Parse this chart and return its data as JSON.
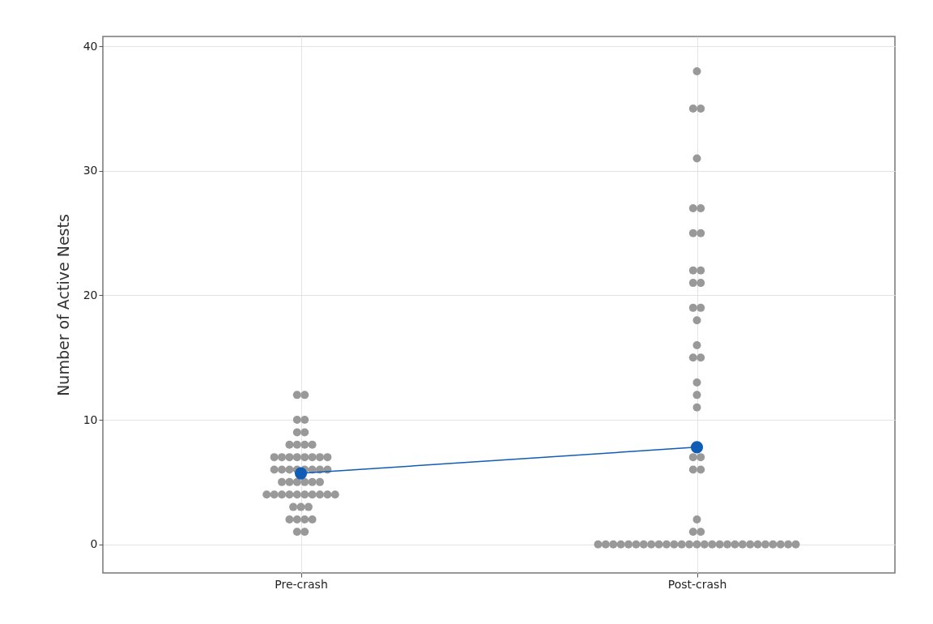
{
  "chart_data": {
    "type": "scatter",
    "ylabel": "Number of Active Nests",
    "categories": [
      "Pre-crash",
      "Post-crash"
    ],
    "ylim": [
      -2.3,
      40.8
    ],
    "yticks": [
      0,
      10,
      20,
      30,
      40
    ],
    "grid": true,
    "marker": "circle",
    "series": [
      {
        "color": "#999999",
        "x": [
          "Pre-crash",
          "Pre-crash",
          "Pre-crash",
          "Pre-crash",
          "Pre-crash",
          "Pre-crash",
          "Pre-crash",
          "Pre-crash",
          "Pre-crash",
          "Pre-crash",
          "Pre-crash",
          "Pre-crash",
          "Pre-crash",
          "Pre-crash",
          "Pre-crash",
          "Pre-crash",
          "Pre-crash",
          "Pre-crash",
          "Pre-crash",
          "Pre-crash",
          "Pre-crash",
          "Pre-crash",
          "Pre-crash",
          "Pre-crash",
          "Pre-crash",
          "Pre-crash",
          "Pre-crash",
          "Pre-crash",
          "Pre-crash",
          "Pre-crash",
          "Pre-crash",
          "Pre-crash",
          "Pre-crash",
          "Pre-crash",
          "Pre-crash",
          "Pre-crash",
          "Pre-crash",
          "Pre-crash",
          "Pre-crash",
          "Pre-crash",
          "Pre-crash",
          "Pre-crash",
          "Pre-crash",
          "Pre-crash",
          "Pre-crash",
          "Pre-crash",
          "Pre-crash",
          "Pre-crash",
          "Pre-crash",
          "Pre-crash",
          "Pre-crash"
        ],
        "values": [
          12,
          12,
          10,
          10,
          9,
          9,
          8,
          8,
          8,
          8,
          7,
          7,
          7,
          7,
          7,
          7,
          7,
          7,
          6,
          6,
          6,
          6,
          6,
          6,
          6,
          6,
          5,
          5,
          5,
          5,
          5,
          5,
          4,
          4,
          4,
          4,
          4,
          4,
          4,
          4,
          4,
          4,
          3,
          3,
          3,
          2,
          2,
          2,
          2,
          1,
          1
        ]
      },
      {
        "color": "#999999",
        "x": [
          "Post-crash",
          "Post-crash",
          "Post-crash",
          "Post-crash",
          "Post-crash",
          "Post-crash",
          "Post-crash",
          "Post-crash",
          "Post-crash",
          "Post-crash",
          "Post-crash",
          "Post-crash",
          "Post-crash",
          "Post-crash",
          "Post-crash",
          "Post-crash",
          "Post-crash",
          "Post-crash",
          "Post-crash",
          "Post-crash",
          "Post-crash",
          "Post-crash",
          "Post-crash",
          "Post-crash",
          "Post-crash",
          "Post-crash",
          "Post-crash",
          "Post-crash",
          "Post-crash",
          "Post-crash",
          "Post-crash",
          "Post-crash",
          "Post-crash",
          "Post-crash",
          "Post-crash",
          "Post-crash",
          "Post-crash",
          "Post-crash",
          "Post-crash",
          "Post-crash",
          "Post-crash",
          "Post-crash",
          "Post-crash",
          "Post-crash",
          "Post-crash",
          "Post-crash",
          "Post-crash",
          "Post-crash",
          "Post-crash",
          "Post-crash",
          "Post-crash",
          "Post-crash",
          "Post-crash",
          "Post-crash",
          "Post-crash"
        ],
        "values": [
          38,
          35,
          35,
          31,
          27,
          27,
          25,
          25,
          22,
          22,
          21,
          21,
          19,
          19,
          18,
          16,
          15,
          15,
          13,
          12,
          11,
          7,
          7,
          6,
          6,
          2,
          1,
          1,
          0,
          0,
          0,
          0,
          0,
          0,
          0,
          0,
          0,
          0,
          0,
          0,
          0,
          0,
          0,
          0,
          0,
          0,
          0,
          0,
          0,
          0,
          0,
          0,
          0,
          0,
          0
        ]
      },
      {
        "type": "line",
        "color": "#0f5db5",
        "values": [
          5.7,
          7.8
        ]
      }
    ]
  }
}
